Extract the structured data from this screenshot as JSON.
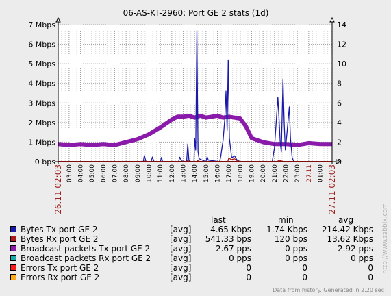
{
  "chart_data": {
    "type": "line",
    "title": "06-AS-KT-2960: Port GE 2 stats  (1d)",
    "y_left": {
      "unit": "bps",
      "range": [
        0,
        7000000
      ],
      "ticks": [
        {
          "v": 0,
          "label": "0 bps"
        },
        {
          "v": 1000000,
          "label": "1 Mbps"
        },
        {
          "v": 2000000,
          "label": "2 Mbps"
        },
        {
          "v": 3000000,
          "label": "3 Mbps"
        },
        {
          "v": 4000000,
          "label": "4 Mbps"
        },
        {
          "v": 5000000,
          "label": "5 Mbps"
        },
        {
          "v": 6000000,
          "label": "6 Mbps"
        },
        {
          "v": 7000000,
          "label": "7 Mbps"
        }
      ]
    },
    "y_right": {
      "unit": "pps",
      "range": [
        0,
        14
      ],
      "ticks": [
        {
          "v": 0,
          "label": "0"
        },
        {
          "v": 2,
          "label": "2"
        },
        {
          "v": 4,
          "label": "4"
        },
        {
          "v": 6,
          "label": "6"
        },
        {
          "v": 8,
          "label": "8"
        },
        {
          "v": 10,
          "label": "10"
        },
        {
          "v": 12,
          "label": "12"
        },
        {
          "v": 14,
          "label": "14"
        }
      ]
    },
    "x_range_hours": [
      2.05,
      26.05
    ],
    "x_ticks": [
      {
        "h": 3,
        "label": "03:00"
      },
      {
        "h": 4,
        "label": "04:00"
      },
      {
        "h": 5,
        "label": "05:00"
      },
      {
        "h": 6,
        "label": "06:00"
      },
      {
        "h": 7,
        "label": "07:00"
      },
      {
        "h": 8,
        "label": "08:00"
      },
      {
        "h": 9,
        "label": "09:00"
      },
      {
        "h": 10,
        "label": "10:00"
      },
      {
        "h": 11,
        "label": "11:00"
      },
      {
        "h": 12,
        "label": "12:00"
      },
      {
        "h": 13,
        "label": "13:00"
      },
      {
        "h": 14,
        "label": "14:00"
      },
      {
        "h": 15,
        "label": "15:00"
      },
      {
        "h": 16,
        "label": "16:00"
      },
      {
        "h": 17,
        "label": "17:00"
      },
      {
        "h": 18,
        "label": "18:00"
      },
      {
        "h": 19,
        "label": "19:00"
      },
      {
        "h": 20,
        "label": "20:00"
      },
      {
        "h": 21,
        "label": "21:00"
      },
      {
        "h": 22,
        "label": "22:00"
      },
      {
        "h": 23,
        "label": "23:00"
      },
      {
        "h": 24,
        "label": "27.11"
      },
      {
        "h": 25,
        "label": "01:00"
      }
    ],
    "x_edge_labels": {
      "start": "26.11 02:03",
      "end": "27.11 02:03"
    },
    "series": [
      {
        "name": "Bytes Tx port GE 2",
        "color": "#1a1aaa",
        "axis": "left",
        "unit": "bps",
        "points": [
          [
            2.05,
            0
          ],
          [
            9.5,
            0
          ],
          [
            9.6,
            320000
          ],
          [
            9.75,
            0
          ],
          [
            10.2,
            0
          ],
          [
            10.3,
            240000
          ],
          [
            10.45,
            0
          ],
          [
            11.0,
            0
          ],
          [
            11.1,
            220000
          ],
          [
            11.2,
            0
          ],
          [
            12.6,
            0
          ],
          [
            12.7,
            230000
          ],
          [
            12.85,
            40000
          ],
          [
            13.3,
            0
          ],
          [
            13.4,
            900000
          ],
          [
            13.5,
            100000
          ],
          [
            13.6,
            0
          ],
          [
            13.95,
            0
          ],
          [
            14.0,
            1200000
          ],
          [
            14.1,
            600000
          ],
          [
            14.2,
            6700000
          ],
          [
            14.3,
            500000
          ],
          [
            14.4,
            150000
          ],
          [
            15.0,
            0
          ],
          [
            15.1,
            250000
          ],
          [
            15.2,
            80000
          ],
          [
            16.2,
            0
          ],
          [
            16.3,
            300000
          ],
          [
            16.5,
            1100000
          ],
          [
            16.65,
            2200000
          ],
          [
            16.75,
            3600000
          ],
          [
            16.85,
            1600000
          ],
          [
            16.95,
            5200000
          ],
          [
            17.05,
            1200000
          ],
          [
            17.25,
            200000
          ],
          [
            17.5,
            300000
          ],
          [
            17.7,
            100000
          ],
          [
            18.0,
            0
          ],
          [
            20.8,
            0
          ],
          [
            21.0,
            700000
          ],
          [
            21.15,
            2000000
          ],
          [
            21.3,
            3300000
          ],
          [
            21.4,
            2200000
          ],
          [
            21.5,
            1000000
          ],
          [
            21.6,
            500000
          ],
          [
            21.75,
            4200000
          ],
          [
            21.85,
            2000000
          ],
          [
            21.95,
            600000
          ],
          [
            22.1,
            1500000
          ],
          [
            22.3,
            2800000
          ],
          [
            22.4,
            1200000
          ],
          [
            22.55,
            200000
          ],
          [
            22.7,
            0
          ],
          [
            26.05,
            0
          ]
        ]
      },
      {
        "name": "Bytes Rx port GE 2",
        "color": "#aa1a1a",
        "axis": "left",
        "unit": "bps",
        "points": [
          [
            2.05,
            0
          ],
          [
            9.5,
            0
          ],
          [
            9.6,
            40000
          ],
          [
            9.75,
            0
          ],
          [
            13.3,
            0
          ],
          [
            13.4,
            60000
          ],
          [
            13.6,
            0
          ],
          [
            14.2,
            0
          ],
          [
            14.3,
            80000
          ],
          [
            14.45,
            0
          ],
          [
            16.9,
            0
          ],
          [
            17.0,
            200000
          ],
          [
            17.2,
            100000
          ],
          [
            17.5,
            150000
          ],
          [
            17.7,
            60000
          ],
          [
            18.0,
            0
          ],
          [
            21.2,
            0
          ],
          [
            21.4,
            70000
          ],
          [
            21.6,
            40000
          ],
          [
            21.9,
            0
          ],
          [
            26.05,
            0
          ]
        ]
      },
      {
        "name": "Broadcast packets Tx port GE 2",
        "color": "#8a1aaa",
        "axis": "right",
        "unit": "pps",
        "points": [
          [
            2.05,
            1.8
          ],
          [
            3,
            1.7
          ],
          [
            4,
            1.8
          ],
          [
            5,
            1.7
          ],
          [
            6,
            1.8
          ],
          [
            7,
            1.7
          ],
          [
            8,
            2.0
          ],
          [
            9,
            2.3
          ],
          [
            10,
            2.8
          ],
          [
            11,
            3.5
          ],
          [
            12,
            4.3
          ],
          [
            12.5,
            4.6
          ],
          [
            13,
            4.6
          ],
          [
            13.5,
            4.7
          ],
          [
            14,
            4.5
          ],
          [
            14.5,
            4.7
          ],
          [
            15,
            4.5
          ],
          [
            15.5,
            4.6
          ],
          [
            16,
            4.7
          ],
          [
            16.5,
            4.5
          ],
          [
            17,
            4.6
          ],
          [
            17.5,
            4.5
          ],
          [
            18,
            4.4
          ],
          [
            18.5,
            3.6
          ],
          [
            19,
            2.4
          ],
          [
            20,
            2.0
          ],
          [
            21,
            1.8
          ],
          [
            22,
            1.8
          ],
          [
            23,
            1.7
          ],
          [
            24,
            1.9
          ],
          [
            25,
            1.8
          ],
          [
            26.05,
            1.8
          ]
        ]
      },
      {
        "name": "Broadcast packets Rx port GE 2",
        "color": "#1aaaaa",
        "axis": "right",
        "unit": "pps",
        "points": [
          [
            2.05,
            0
          ],
          [
            26.05,
            0
          ]
        ]
      },
      {
        "name": "Errors Tx port GE 2",
        "color": "#ff1a1a",
        "axis": "right",
        "unit": "pps",
        "points": [
          [
            2.05,
            0
          ],
          [
            26.05,
            0
          ]
        ]
      },
      {
        "name": "Errors Rx port GE 2",
        "color": "#ffaa1a",
        "axis": "right",
        "unit": "pps",
        "points": [
          [
            2.05,
            0
          ],
          [
            26.05,
            0
          ]
        ]
      }
    ]
  },
  "legend": {
    "headers": {
      "last": "last",
      "min": "min",
      "avg": "avg"
    },
    "rows": [
      {
        "name": "Bytes Tx port GE 2",
        "func": "[avg]",
        "last": "4.65 Kbps",
        "min": "1.74 Kbps",
        "avg": "214.42 Kbps",
        "color": "#1a1aaa"
      },
      {
        "name": "Bytes Rx port GE 2",
        "func": "[avg]",
        "last": "541.33 bps",
        "min": "120 bps",
        "avg": "13.62 Kbps",
        "color": "#aa1a1a"
      },
      {
        "name": "Broadcast packets Tx port GE 2",
        "func": "[avg]",
        "last": "2.67 pps",
        "min": "0 pps",
        "avg": "2.92 pps",
        "color": "#8a1aaa"
      },
      {
        "name": "Broadcast packets Rx port GE 2",
        "func": "[avg]",
        "last": "0 pps",
        "min": "0 pps",
        "avg": "0 pps",
        "color": "#1aaaaa"
      },
      {
        "name": "Errors Tx port GE 2",
        "func": "[avg]",
        "last": "0",
        "min": "0",
        "avg": "0",
        "color": "#ff1a1a"
      },
      {
        "name": "Errors Rx port GE 2",
        "func": "[avg]",
        "last": "0",
        "min": "0",
        "avg": "0",
        "color": "#ffaa1a"
      }
    ]
  },
  "footer": "Data from history. Generated in 2.20 sec",
  "watermark": "http://www.zabbix.com"
}
